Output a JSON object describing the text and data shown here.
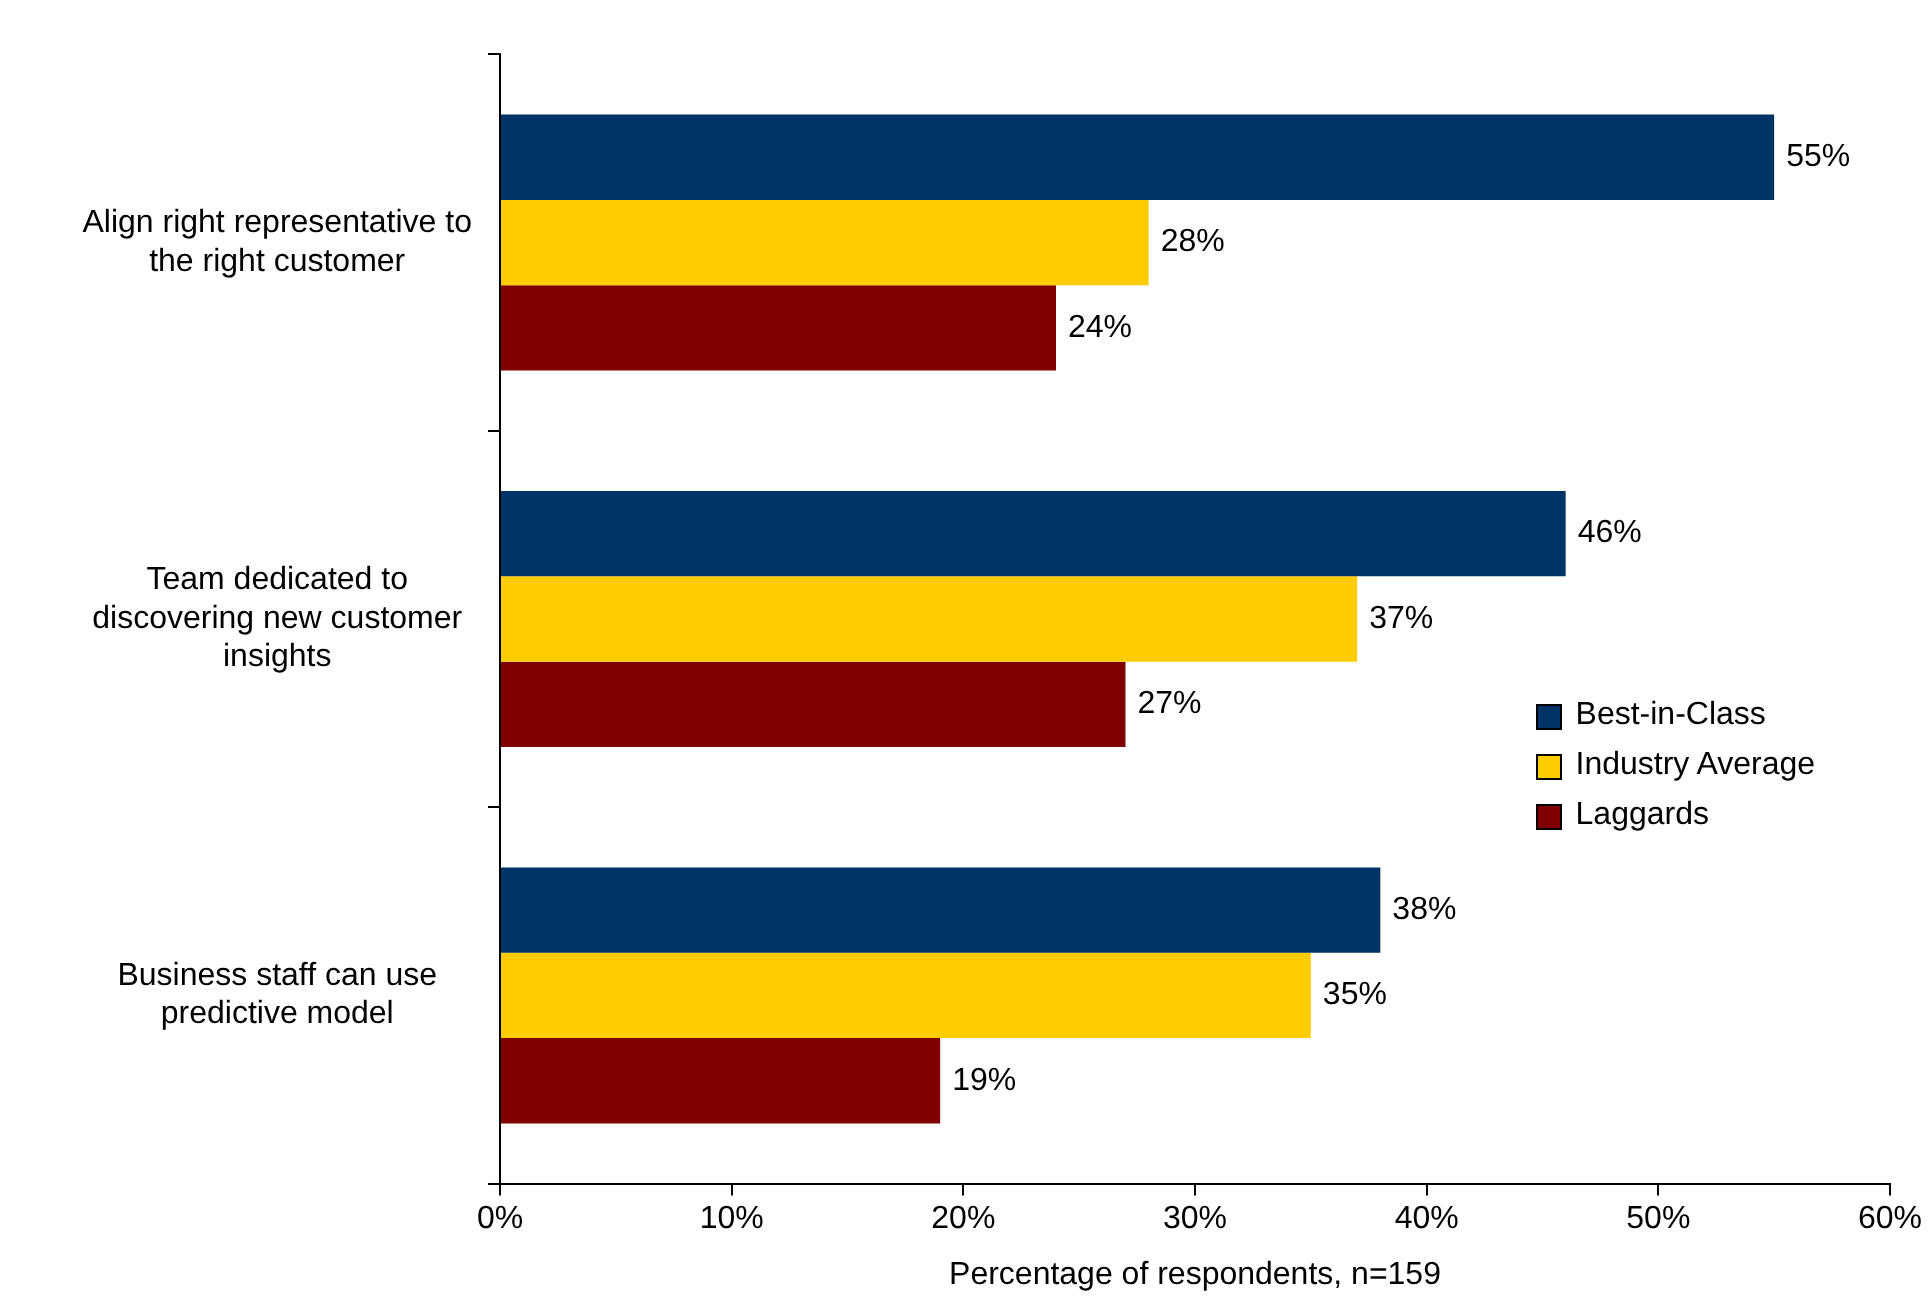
{
  "chart_data": {
    "type": "bar",
    "orientation": "horizontal",
    "xlabel": "Percentage of respondents, n=159",
    "categories": [
      "Align right representative to the right customer",
      "Team dedicated to discovering new customer insights",
      "Business staff can use predictive model"
    ],
    "series": [
      {
        "name": "Best-in-Class",
        "color": "#003366",
        "values": [
          55,
          46,
          38
        ],
        "value_labels": [
          "55%",
          "46%",
          "38%"
        ]
      },
      {
        "name": "Industry Average",
        "color": "#ffcc00",
        "values": [
          28,
          37,
          35
        ],
        "value_labels": [
          "28%",
          "37%",
          "35%"
        ]
      },
      {
        "name": "Laggards",
        "color": "#800000",
        "values": [
          24,
          27,
          19
        ],
        "value_labels": [
          "24%",
          "27%",
          "19%"
        ]
      }
    ],
    "xlim": [
      0,
      60
    ],
    "xticks": [
      {
        "value": 0,
        "label": "0%"
      },
      {
        "value": 10,
        "label": "10%"
      },
      {
        "value": 20,
        "label": "20%"
      },
      {
        "value": 30,
        "label": "30%"
      },
      {
        "value": 40,
        "label": "40%"
      },
      {
        "value": 50,
        "label": "50%"
      },
      {
        "value": 60,
        "label": "60%"
      }
    ],
    "grid": false,
    "legend": "right"
  }
}
